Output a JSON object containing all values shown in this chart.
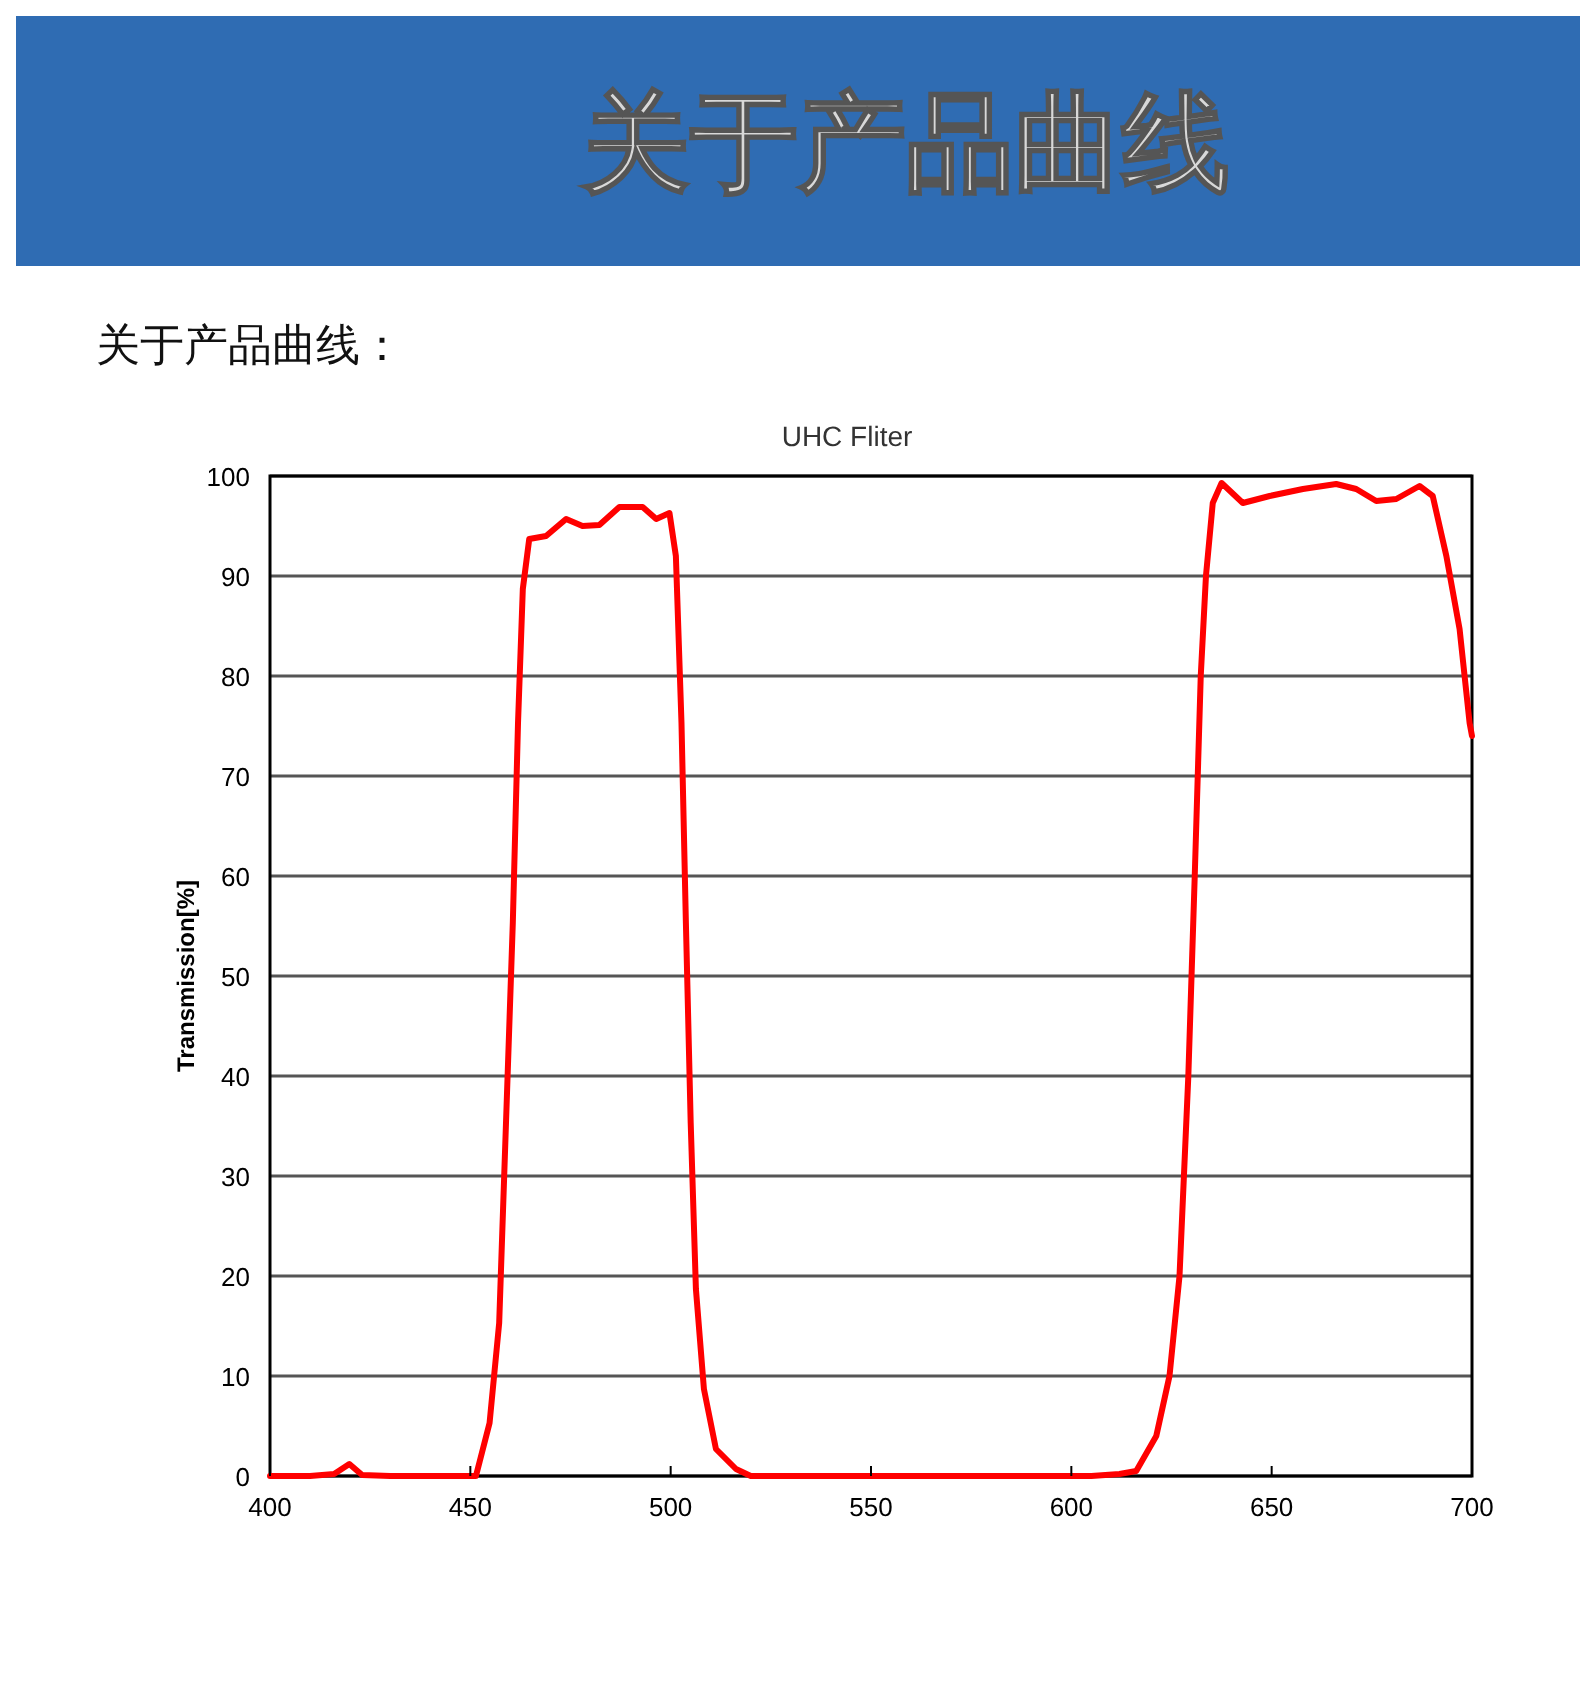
{
  "chart_data": {
    "type": "line",
    "title": "UHC Fliter",
    "ylabel": "Transmission[%]",
    "annotations": [
      "关于产品曲线",
      "关于产品曲线："
    ],
    "xlim": [
      400,
      700
    ],
    "xticks": [
      400,
      450,
      500,
      550,
      600,
      650,
      700
    ],
    "ylim": [
      0,
      100
    ],
    "yticks": [
      0,
      10,
      20,
      30,
      40,
      50,
      60,
      70,
      80,
      90,
      100
    ],
    "grid": "y",
    "marker": "none",
    "line_style": "solid",
    "series": [
      {
        "color": "#ff0000",
        "x": [
          400,
          410,
          416,
          419.8,
          423,
          430,
          440,
          451.4,
          454.8,
          457.2,
          458.9,
          460.6,
          461.9,
          463.1,
          464.7,
          468.9,
          473.9,
          478,
          482.2,
          487.2,
          493,
          496.4,
          499.7,
          501.3,
          502.7,
          503.8,
          505,
          506.3,
          508.3,
          511.3,
          516.3,
          520,
          560,
          605,
          612,
          616.2,
          621.2,
          624.5,
          627,
          629.2,
          630.8,
          632.3,
          633.6,
          635.3,
          637.5,
          642.8,
          649.5,
          657.8,
          666.1,
          671.1,
          676.1,
          681.1,
          686.9,
          690.2,
          693.6,
          696.9,
          699.4,
          700
        ],
        "values": [
          0,
          0,
          0.2,
          1.2,
          0.1,
          0,
          0,
          0,
          5.3,
          15.3,
          35.3,
          55.3,
          75.3,
          88.7,
          93.7,
          94,
          95.7,
          95,
          95.1,
          96.9,
          96.9,
          95.7,
          96.3,
          92,
          75.3,
          55.3,
          35.3,
          18.7,
          8.7,
          2.7,
          0.7,
          0,
          0,
          0,
          0.2,
          0.5,
          4,
          10,
          20,
          40,
          60,
          80,
          90,
          97.3,
          99.3,
          97.3,
          98,
          98.7,
          99.2,
          98.7,
          97.5,
          97.7,
          99,
          98,
          92,
          84.7,
          75.3,
          74
        ]
      }
    ]
  }
}
